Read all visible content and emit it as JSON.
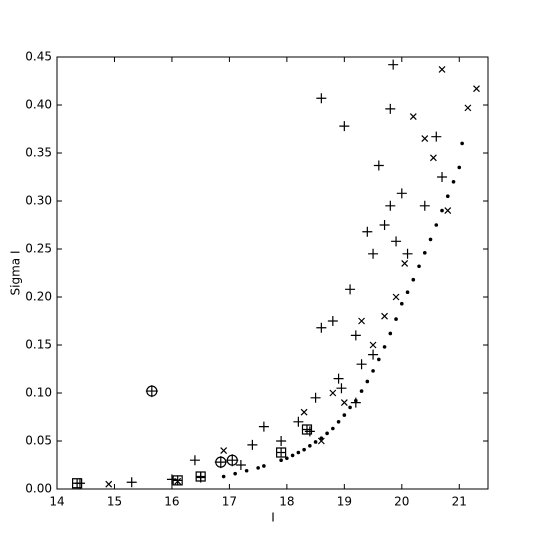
{
  "chart_data": {
    "type": "scatter",
    "x_label": "I",
    "y_label": "Sigma I",
    "xlim": [
      14,
      21.5
    ],
    "ylim": [
      0,
      0.45
    ],
    "xticks": [
      14,
      15,
      16,
      17,
      18,
      19,
      20,
      21
    ],
    "yticks": [
      {
        "value": 0,
        "label": "0.00"
      },
      {
        "value": 0.05,
        "label": "0.05"
      },
      {
        "value": 0.1,
        "label": "0.10"
      },
      {
        "value": 0.15,
        "label": "0.15"
      },
      {
        "value": 0.2,
        "label": "0.20"
      },
      {
        "value": 0.25,
        "label": "0.25"
      },
      {
        "value": 0.3,
        "label": "0.30"
      },
      {
        "value": 0.35,
        "label": "0.35"
      },
      {
        "value": 0.4,
        "label": "0.40"
      },
      {
        "value": 0.45,
        "label": "0.45"
      }
    ],
    "series": [
      {
        "marker": "dot",
        "color": "#000000",
        "x": [
          16.9,
          17.1,
          17.3,
          17.5,
          17.6,
          17.9,
          18.0,
          18.1,
          18.2,
          18.3,
          18.4,
          18.5,
          18.6,
          18.7,
          18.8,
          18.9,
          19.0,
          19.1,
          19.2,
          19.3,
          19.4,
          19.5,
          19.6,
          19.7,
          19.8,
          19.9,
          20.0,
          20.1,
          20.2,
          20.3,
          20.4,
          20.5,
          20.6,
          20.7,
          20.8,
          20.9,
          21.0,
          21.05
        ],
        "values": [
          0.013,
          0.016,
          0.019,
          0.022,
          0.024,
          0.03,
          0.032,
          0.035,
          0.038,
          0.041,
          0.045,
          0.049,
          0.053,
          0.058,
          0.063,
          0.07,
          0.077,
          0.085,
          0.092,
          0.102,
          0.112,
          0.123,
          0.135,
          0.148,
          0.162,
          0.177,
          0.193,
          0.205,
          0.218,
          0.232,
          0.246,
          0.26,
          0.275,
          0.29,
          0.305,
          0.32,
          0.335,
          0.36
        ]
      },
      {
        "marker": "plus",
        "color": "#000000",
        "x": [
          14.4,
          15.3,
          16.0,
          16.4,
          16.5,
          17.2,
          17.4,
          17.6,
          17.9,
          18.2,
          18.4,
          18.5,
          18.6,
          18.6,
          18.8,
          18.9,
          19.0,
          19.1,
          19.2,
          19.3,
          19.4,
          19.5,
          19.6,
          19.7,
          19.8,
          19.8,
          19.9,
          20.0,
          20.1,
          20.4,
          20.6,
          20.7,
          19.85,
          19.2,
          19.5,
          18.95
        ],
        "values": [
          0.006,
          0.007,
          0.01,
          0.03,
          0.012,
          0.025,
          0.046,
          0.065,
          0.05,
          0.07,
          0.06,
          0.095,
          0.168,
          0.407,
          0.175,
          0.115,
          0.378,
          0.208,
          0.16,
          0.13,
          0.268,
          0.245,
          0.337,
          0.275,
          0.295,
          0.396,
          0.258,
          0.308,
          0.245,
          0.295,
          0.367,
          0.325,
          0.442,
          0.09,
          0.14,
          0.105
        ]
      },
      {
        "marker": "cross",
        "color": "#000000",
        "x": [
          14.9,
          16.1,
          16.9,
          18.3,
          18.6,
          18.8,
          19.0,
          19.3,
          19.5,
          19.9,
          20.2,
          20.4,
          20.55,
          20.7,
          21.15,
          21.3,
          20.8,
          19.7,
          20.05
        ],
        "values": [
          0.005,
          0.008,
          0.04,
          0.08,
          0.05,
          0.1,
          0.09,
          0.175,
          0.15,
          0.2,
          0.388,
          0.365,
          0.345,
          0.437,
          0.397,
          0.417,
          0.29,
          0.18,
          0.235
        ]
      },
      {
        "marker": "square",
        "color": "#000000",
        "x": [
          14.35,
          16.1,
          16.5,
          17.9,
          18.35
        ],
        "values": [
          0.006,
          0.009,
          0.013,
          0.038,
          0.062
        ]
      },
      {
        "marker": "circle",
        "color": "#000000",
        "x": [
          15.65,
          16.85,
          17.05
        ],
        "values": [
          0.102,
          0.028,
          0.03
        ]
      }
    ]
  }
}
